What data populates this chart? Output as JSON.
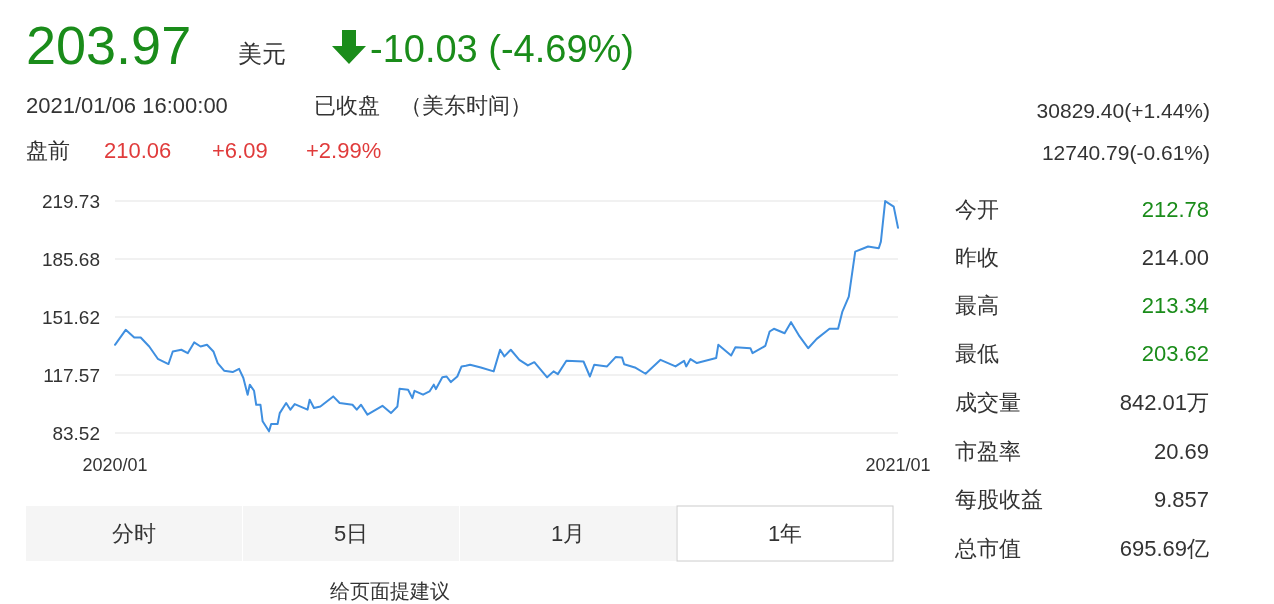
{
  "chart_data": {
    "type": "line",
    "xlim": [
      "2020-01-06",
      "2021-01-06"
    ],
    "xticks": [
      {
        "value": "2020-01-06",
        "label": "2020/01"
      },
      {
        "value": "2021-01-06",
        "label": "2021/01"
      }
    ],
    "ylim": [
      83.52,
      219.73
    ],
    "yticks": [
      83.52,
      117.57,
      151.62,
      185.68,
      219.73
    ],
    "grid": "y",
    "series": [
      {
        "color": "#3f8fe0",
        "x": [
          "2020-01-06",
          "2020-01-11",
          "2020-01-15",
          "2020-01-18",
          "2020-01-22",
          "2020-01-26",
          "2020-01-31",
          "2020-02-02",
          "2020-02-06",
          "2020-02-09",
          "2020-02-12",
          "2020-02-15",
          "2020-02-18",
          "2020-02-21",
          "2020-02-23",
          "2020-02-26",
          "2020-03-01",
          "2020-03-04",
          "2020-03-06",
          "2020-03-08",
          "2020-03-09",
          "2020-03-11",
          "2020-03-12",
          "2020-03-14",
          "2020-03-15",
          "2020-03-18",
          "2020-03-19",
          "2020-03-22",
          "2020-03-23",
          "2020-03-26",
          "2020-03-28",
          "2020-03-30",
          "2020-04-05",
          "2020-04-06",
          "2020-04-08",
          "2020-04-11",
          "2020-04-17",
          "2020-04-20",
          "2020-04-26",
          "2020-04-28",
          "2020-04-30",
          "2020-05-03",
          "2020-05-10",
          "2020-05-14",
          "2020-05-17",
          "2020-05-18",
          "2020-05-22",
          "2020-05-24",
          "2020-05-25",
          "2020-05-29",
          "2020-06-01",
          "2020-06-03",
          "2020-06-04",
          "2020-06-07",
          "2020-06-09",
          "2020-06-11",
          "2020-06-14",
          "2020-06-16",
          "2020-06-18",
          "2020-06-20",
          "2020-06-25",
          "2020-07-01",
          "2020-07-04",
          "2020-07-06",
          "2020-07-09",
          "2020-07-13",
          "2020-07-17",
          "2020-07-20",
          "2020-07-26",
          "2020-07-29",
          "2020-07-31",
          "2020-08-04",
          "2020-08-12",
          "2020-08-15",
          "2020-08-17",
          "2020-08-23",
          "2020-08-27",
          "2020-08-30",
          "2020-08-31",
          "2020-09-05",
          "2020-09-10",
          "2020-09-17",
          "2020-09-24",
          "2020-09-28",
          "2020-09-29",
          "2020-10-01",
          "2020-10-04",
          "2020-10-13",
          "2020-10-14",
          "2020-10-20",
          "2020-10-22",
          "2020-10-29",
          "2020-10-30",
          "2020-11-05",
          "2020-11-07",
          "2020-11-09",
          "2020-11-14",
          "2020-11-17",
          "2020-11-21",
          "2020-11-25",
          "2020-11-29",
          "2020-12-05",
          "2020-12-09",
          "2020-12-11",
          "2020-12-14",
          "2020-12-17",
          "2020-12-21",
          "2020-12-23",
          "2020-12-28",
          "2020-12-29",
          "2020-12-31",
          "2021-01-04",
          "2021-01-06"
        ],
        "values": [
          135.3,
          144.1,
          139.6,
          139.6,
          134.3,
          127.1,
          124.0,
          131.4,
          132.4,
          130.4,
          136.7,
          134.3,
          135.3,
          131.4,
          124.6,
          120.1,
          119.3,
          121.2,
          115.8,
          106.0,
          111.9,
          108.3,
          100.1,
          100.1,
          90.4,
          84.5,
          88.8,
          88.8,
          95.2,
          101.1,
          97.2,
          100.5,
          97.2,
          103.1,
          98.2,
          99.1,
          105.0,
          101.1,
          100.1,
          97.2,
          100.1,
          94.3,
          99.5,
          95.2,
          99.1,
          109.5,
          108.9,
          104.0,
          108.3,
          106.0,
          107.9,
          111.9,
          109.3,
          116.2,
          116.7,
          113.4,
          116.7,
          122.6,
          123.0,
          123.6,
          122.0,
          119.7,
          132.4,
          128.5,
          132.4,
          126.5,
          123.2,
          125.1,
          116.2,
          119.7,
          118.1,
          125.9,
          125.5,
          116.7,
          123.6,
          122.6,
          128.1,
          127.9,
          123.9,
          122.0,
          118.3,
          126.5,
          122.6,
          125.9,
          122.6,
          126.9,
          124.6,
          127.5,
          135.3,
          129.0,
          133.9,
          133.3,
          130.4,
          134.7,
          143.1,
          144.7,
          142.1,
          148.6,
          140.2,
          133.3,
          138.8,
          144.7,
          144.7,
          154.8,
          163.6,
          190.0,
          192.0,
          193.0,
          192.0,
          195.9,
          219.7,
          216.4,
          204.0
        ]
      }
    ],
    "annotations": [
      "203.97",
      "美元",
      "-10.03 (-4.69%)",
      "2021/01/06 16:00:00",
      "已收盘",
      "（美东时间）",
      "盘前",
      "210.06",
      "+6.09",
      "+2.99%",
      "30829.40(+1.44%)",
      "12740.79(-0.61%)",
      "今开",
      "212.78",
      "昨收",
      "214.00",
      "最高",
      "213.34",
      "最低",
      "203.62",
      "成交量",
      "842.01万",
      "市盈率",
      "20.69",
      "每股收益",
      "9.857",
      "总市值",
      "695.69亿",
      "分时",
      "5日",
      "1月",
      "1年",
      "给页面提建议"
    ]
  }
}
